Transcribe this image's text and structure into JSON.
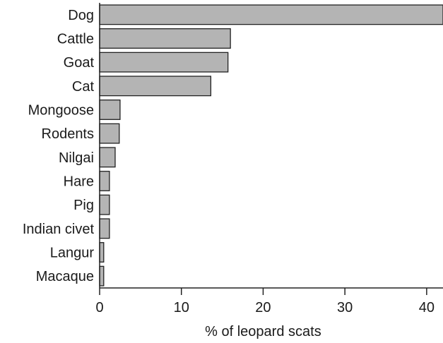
{
  "chart_data": {
    "type": "bar",
    "orientation": "horizontal",
    "categories": [
      "Dog",
      "Cattle",
      "Goat",
      "Cat",
      "Mongoose",
      "Rodents",
      "Nilgai",
      "Hare",
      "Pig",
      "Indian civet",
      "Langur",
      "Macaque"
    ],
    "values": [
      42,
      16,
      15.7,
      13.6,
      2.5,
      2.4,
      1.9,
      1.2,
      1.2,
      1.2,
      0.5,
      0.5
    ],
    "title": "",
    "xlabel": "% of leopard scats",
    "ylabel": "",
    "xlim": [
      0,
      42
    ],
    "xticks": [
      0,
      10,
      20,
      30,
      40
    ],
    "grid": false,
    "bar_color": "#b4b4b4",
    "edge_color": "#222222"
  }
}
